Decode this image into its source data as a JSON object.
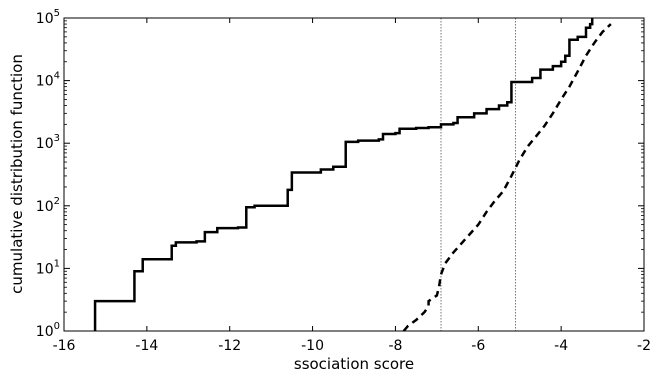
{
  "chart_data": {
    "type": "line",
    "xlabel": "ssociation score",
    "ylabel": "cumulative distribution function",
    "xlim": [
      -16,
      -2
    ],
    "ylim": [
      1,
      100000
    ],
    "yscale": "log",
    "grid": false,
    "x_ticks": [
      -16,
      -14,
      -12,
      -10,
      -8,
      -6,
      -4,
      -2
    ],
    "x_tick_labels": [
      "-16",
      "-14",
      "-12",
      "-10",
      "-8",
      "-6",
      "-4",
      "-2"
    ],
    "y_ticks": [
      {
        "value": 1,
        "base": "10",
        "exp": "0"
      },
      {
        "value": 10,
        "base": "10",
        "exp": "1"
      },
      {
        "value": 100,
        "base": "10",
        "exp": "2"
      },
      {
        "value": 1000,
        "base": "10",
        "exp": "3"
      },
      {
        "value": 10000,
        "base": "10",
        "exp": "4"
      },
      {
        "value": 100000,
        "base": "10",
        "exp": "5"
      }
    ],
    "reference_lines_x": [
      -6.9,
      -5.1
    ],
    "series": [
      {
        "style": "solid",
        "color": "#000000",
        "step": true,
        "points": [
          [
            -15.25,
            1
          ],
          [
            -15.25,
            3
          ],
          [
            -14.3,
            4
          ],
          [
            -14.3,
            9
          ],
          [
            -14.1,
            9
          ],
          [
            -14.1,
            14
          ],
          [
            -13.4,
            15
          ],
          [
            -13.4,
            23
          ],
          [
            -13.3,
            26
          ],
          [
            -12.8,
            27
          ],
          [
            -12.6,
            27
          ],
          [
            -12.6,
            38
          ],
          [
            -12.3,
            44
          ],
          [
            -11.8,
            45
          ],
          [
            -11.6,
            47
          ],
          [
            -11.6,
            95
          ],
          [
            -11.4,
            97
          ],
          [
            -11.4,
            100
          ],
          [
            -10.6,
            100
          ],
          [
            -10.6,
            180
          ],
          [
            -10.5,
            190
          ],
          [
            -10.5,
            340
          ],
          [
            -9.8,
            340
          ],
          [
            -9.8,
            380
          ],
          [
            -9.5,
            400
          ],
          [
            -9.5,
            420
          ],
          [
            -9.2,
            420
          ],
          [
            -9.2,
            1050
          ],
          [
            -8.9,
            1100
          ],
          [
            -8.4,
            1150
          ],
          [
            -8.3,
            1150
          ],
          [
            -8.3,
            1400
          ],
          [
            -8.0,
            1450
          ],
          [
            -7.9,
            1450
          ],
          [
            -7.9,
            1700
          ],
          [
            -7.5,
            1750
          ],
          [
            -7.2,
            1800
          ],
          [
            -6.9,
            2000
          ],
          [
            -6.6,
            2100
          ],
          [
            -6.5,
            2200
          ],
          [
            -6.5,
            2600
          ],
          [
            -6.1,
            3000
          ],
          [
            -5.8,
            3500
          ],
          [
            -5.5,
            4000
          ],
          [
            -5.3,
            4500
          ],
          [
            -5.2,
            5000
          ],
          [
            -5.2,
            9500
          ],
          [
            -4.7,
            11000
          ],
          [
            -4.5,
            12000
          ],
          [
            -4.5,
            15000
          ],
          [
            -4.2,
            17000
          ],
          [
            -4.0,
            20000
          ],
          [
            -3.9,
            25000
          ],
          [
            -3.8,
            28000
          ],
          [
            -3.8,
            45000
          ],
          [
            -3.6,
            50000
          ],
          [
            -3.4,
            52000
          ],
          [
            -3.4,
            70000
          ],
          [
            -3.3,
            80000
          ],
          [
            -3.25,
            100000
          ]
        ]
      },
      {
        "style": "dashed",
        "color": "#000000",
        "step": false,
        "points": [
          [
            -7.8,
            1
          ],
          [
            -7.7,
            1.2
          ],
          [
            -7.5,
            1.5
          ],
          [
            -7.3,
            2
          ],
          [
            -7.2,
            2.5
          ],
          [
            -7.2,
            3
          ],
          [
            -7.0,
            3.7
          ],
          [
            -6.95,
            5
          ],
          [
            -6.9,
            8
          ],
          [
            -6.8,
            12
          ],
          [
            -6.6,
            18
          ],
          [
            -6.3,
            30
          ],
          [
            -6.0,
            50
          ],
          [
            -5.8,
            80
          ],
          [
            -5.6,
            120
          ],
          [
            -5.4,
            170
          ],
          [
            -5.2,
            300
          ],
          [
            -5.0,
            550
          ],
          [
            -4.8,
            900
          ],
          [
            -4.6,
            1300
          ],
          [
            -4.4,
            1900
          ],
          [
            -4.2,
            3000
          ],
          [
            -4.0,
            5000
          ],
          [
            -3.8,
            8000
          ],
          [
            -3.6,
            14000
          ],
          [
            -3.4,
            25000
          ],
          [
            -3.2,
            40000
          ],
          [
            -3.0,
            60000
          ],
          [
            -2.8,
            80000
          ]
        ]
      }
    ]
  }
}
